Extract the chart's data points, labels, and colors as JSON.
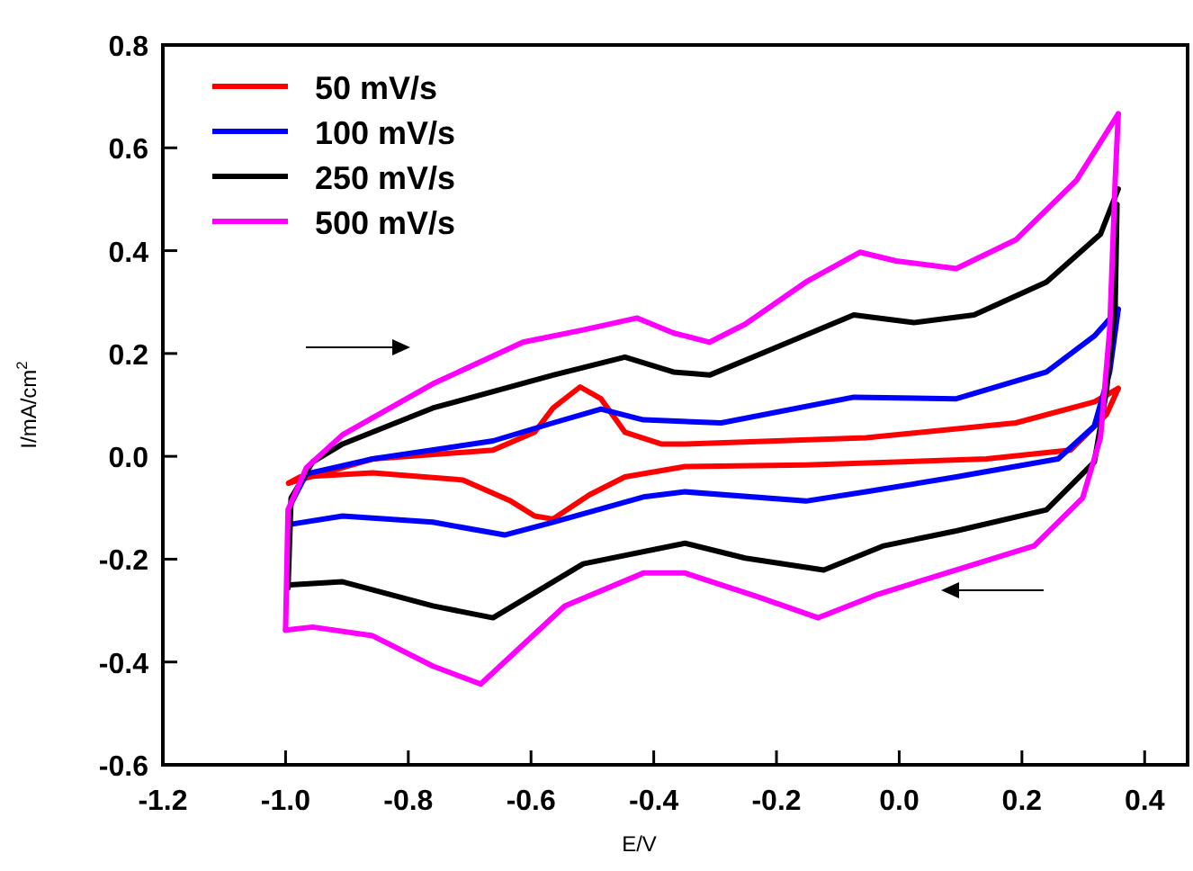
{
  "chart_data": {
    "type": "line",
    "xlabel": "E/V",
    "ylabel": "I/mA/cm$^{2}$",
    "xlim": [
      -1.2,
      0.47
    ],
    "ylim": [
      -0.6,
      0.8
    ],
    "xticks": [
      -1.2,
      {
        "value": -1.0,
        "label": "-1.0"
      },
      -0.8,
      -0.6,
      -0.4,
      -0.2,
      {
        "value": 0,
        "label": "0.0"
      },
      0.2,
      0.4
    ],
    "yticks": [
      -0.6,
      -0.4,
      -0.2,
      {
        "value": 0,
        "label": "0.0"
      },
      0.2,
      0.4,
      0.6,
      0.8
    ],
    "grid": false,
    "legend": "top left",
    "marker": "none",
    "line_style": "solid",
    "series": [
      {
        "name": "50 mV/s",
        "color": "#ff0000",
        "x": [
          -0.995,
          -0.858,
          -0.662,
          -0.594,
          -0.564,
          -0.52,
          -0.486,
          -0.447,
          -0.388,
          -0.349,
          -0.054,
          0.19,
          0.318,
          0.357
        ],
        "values": [
          -0.052,
          -0.005,
          0.012,
          0.047,
          0.094,
          0.135,
          0.112,
          0.047,
          0.024,
          0.024,
          0.036,
          0.065,
          0.106,
          0.132
        ]
      },
      {
        "color": "#ff0000",
        "x": [
          -0.995,
          -0.976,
          -0.858,
          -0.711,
          -0.633,
          -0.594,
          -0.564,
          -0.505,
          -0.447,
          -0.349,
          -0.152,
          0.142,
          0.279,
          0.338,
          0.357
        ],
        "values": [
          -0.052,
          -0.04,
          -0.032,
          -0.046,
          -0.087,
          -0.116,
          -0.122,
          -0.075,
          -0.04,
          -0.02,
          -0.017,
          -0.005,
          0.012,
          0.082,
          0.132
        ]
      },
      {
        "name": "100 mV/s",
        "color": "#0000ff",
        "x": [
          -0.996,
          -0.991,
          -0.966,
          -0.858,
          -0.662,
          -0.564,
          -0.486,
          -0.417,
          -0.29,
          -0.074,
          0.093,
          0.24,
          0.318,
          0.357
        ],
        "values": [
          -0.133,
          -0.092,
          -0.034,
          -0.005,
          0.03,
          0.065,
          0.092,
          0.071,
          0.065,
          0.115,
          0.112,
          0.164,
          0.234,
          0.286
        ]
      },
      {
        "color": "#0000ff",
        "x": [
          -0.996,
          -0.907,
          -0.76,
          -0.643,
          -0.564,
          -0.417,
          -0.349,
          -0.152,
          -0.054,
          0.093,
          0.259,
          0.318,
          0.343,
          0.357
        ],
        "values": [
          -0.133,
          -0.116,
          -0.128,
          -0.153,
          -0.128,
          -0.079,
          -0.069,
          -0.087,
          -0.069,
          -0.04,
          -0.005,
          0.059,
          0.164,
          0.286
        ]
      },
      {
        "name": "250 mV/s",
        "color": "#000000",
        "x": [
          -0.996,
          -0.991,
          -0.956,
          -0.907,
          -0.76,
          -0.564,
          -0.447,
          -0.368,
          -0.309,
          -0.202,
          -0.074,
          0.024,
          0.122,
          0.24,
          0.328,
          0.357
        ],
        "values": [
          -0.256,
          -0.081,
          -0.011,
          0.024,
          0.094,
          0.158,
          0.193,
          0.164,
          0.158,
          0.211,
          0.275,
          0.26,
          0.275,
          0.339,
          0.432,
          0.52
        ]
      },
      {
        "color": "#000000",
        "x": [
          -0.993,
          -0.907,
          -0.76,
          -0.662,
          -0.515,
          -0.349,
          -0.251,
          -0.123,
          -0.025,
          0.093,
          0.24,
          0.318,
          0.338,
          0.352,
          0.355
        ],
        "values": [
          -0.25,
          -0.244,
          -0.291,
          -0.314,
          -0.209,
          -0.169,
          -0.198,
          -0.221,
          -0.174,
          -0.145,
          -0.104,
          -0.011,
          0.129,
          0.292,
          0.49
        ]
      },
      {
        "name": "500 mV/s",
        "color": "#ff00ff",
        "x": [
          -1.0,
          -0.996,
          -0.966,
          -0.907,
          -0.76,
          -0.613,
          -0.515,
          -0.427,
          -0.368,
          -0.309,
          -0.251,
          -0.152,
          -0.064,
          -0.005,
          0.093,
          0.19,
          0.289,
          0.357
        ],
        "values": [
          -0.338,
          -0.104,
          -0.022,
          0.042,
          0.141,
          0.222,
          0.246,
          0.269,
          0.24,
          0.222,
          0.257,
          0.339,
          0.397,
          0.38,
          0.365,
          0.421,
          0.537,
          0.666
        ]
      },
      {
        "color": "#ff00ff",
        "x": [
          -1.0,
          -0.956,
          -0.858,
          -0.76,
          -0.682,
          -0.545,
          -0.417,
          -0.349,
          -0.231,
          -0.132,
          -0.034,
          0.093,
          0.22,
          0.299,
          0.328,
          0.343,
          0.352,
          0.357
        ],
        "values": [
          -0.338,
          -0.332,
          -0.349,
          -0.408,
          -0.443,
          -0.291,
          -0.227,
          -0.227,
          -0.273,
          -0.314,
          -0.268,
          -0.221,
          -0.174,
          -0.081,
          0.036,
          0.246,
          0.537,
          0.666
        ]
      }
    ]
  }
}
